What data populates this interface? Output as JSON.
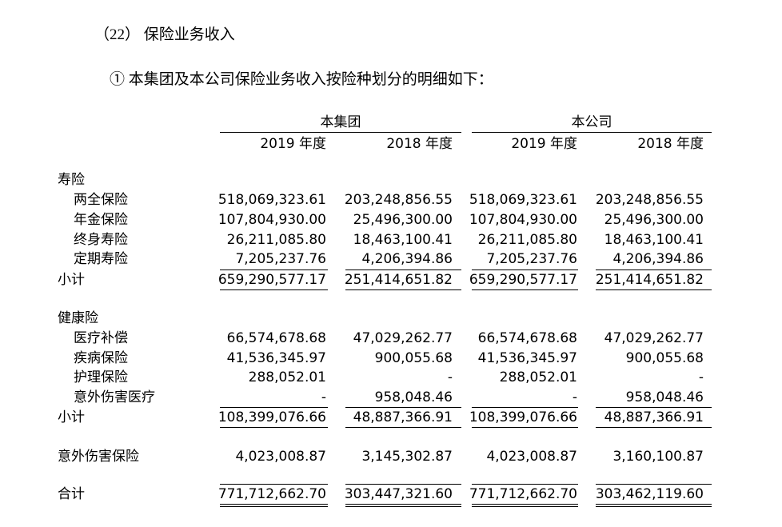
{
  "header": {
    "section": "（22） 保险业务收入",
    "subtitle": "① 本集团及本公司保险业务收入按险种划分的明细如下："
  },
  "table": {
    "groups": [
      "本集团",
      "本公司"
    ],
    "columns": [
      "2019 年度",
      "2018 年度",
      "2019 年度",
      "2018 年度"
    ],
    "rows": [
      {
        "label": "寿险"
      },
      {
        "label": "两全保险",
        "values": [
          "518,069,323.61",
          "203,248,856.55",
          "518,069,323.61",
          "203,248,856.55"
        ]
      },
      {
        "label": "年金保险",
        "values": [
          "107,804,930.00",
          "25,496,300.00",
          "107,804,930.00",
          "25,496,300.00"
        ]
      },
      {
        "label": "终身寿险",
        "values": [
          "26,211,085.80",
          "18,463,100.41",
          "26,211,085.80",
          "18,463,100.41"
        ]
      },
      {
        "label": "定期寿险",
        "values": [
          "7,205,237.76",
          "4,206,394.86",
          "7,205,237.76",
          "4,206,394.86"
        ]
      },
      {
        "label": "小计",
        "values": [
          "659,290,577.17",
          "251,414,651.82",
          "659,290,577.17",
          "251,414,651.82"
        ]
      },
      {
        "label": "健康险"
      },
      {
        "label": "医疗补偿",
        "values": [
          "66,574,678.68",
          "47,029,262.77",
          "66,574,678.68",
          "47,029,262.77"
        ]
      },
      {
        "label": "疾病保险",
        "values": [
          "41,536,345.97",
          "900,055.68",
          "41,536,345.97",
          "900,055.68"
        ]
      },
      {
        "label": "护理保险",
        "values": [
          "288,052.01",
          "-",
          "288,052.01",
          "-"
        ]
      },
      {
        "label": "意外伤害医疗",
        "values": [
          "-",
          "958,048.46",
          "-",
          "958,048.46"
        ]
      },
      {
        "label": "小计",
        "values": [
          "108,399,076.66",
          "48,887,366.91",
          "108,399,076.66",
          "48,887,366.91"
        ]
      },
      {
        "label": "意外伤害保险",
        "values": [
          "4,023,008.87",
          "3,145,302.87",
          "4,023,008.87",
          "3,160,100.87"
        ]
      },
      {
        "label": "合计",
        "values": [
          "771,712,662.70",
          "303,447,321.60",
          "771,712,662.70",
          "303,462,119.60"
        ]
      }
    ]
  }
}
